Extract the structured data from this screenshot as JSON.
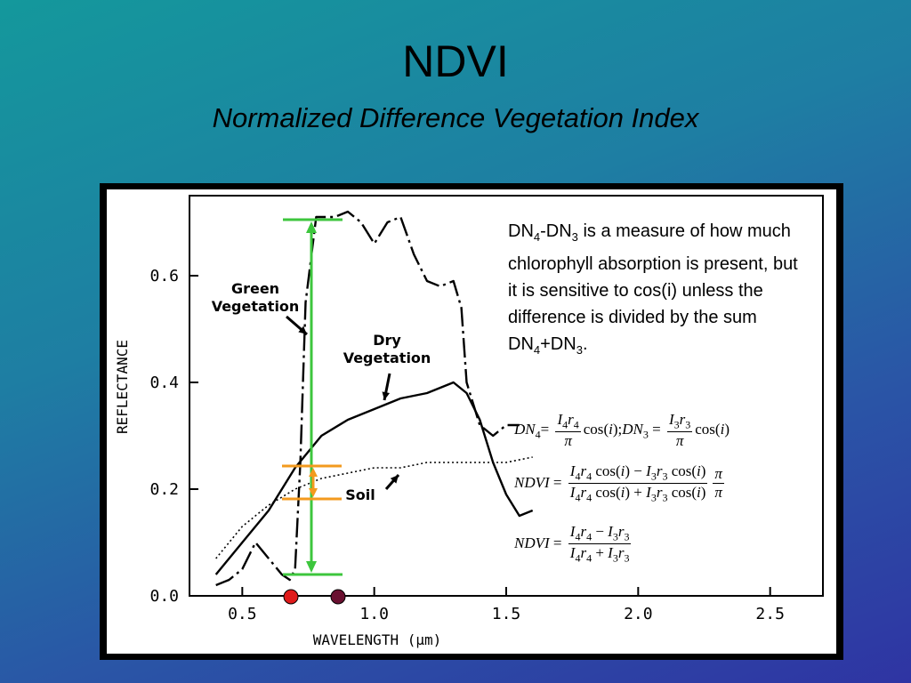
{
  "slide": {
    "title": "NDVI",
    "subtitle": "Normalized Difference Vegetation Index"
  },
  "description": {
    "p1": "DN",
    "s1": "4",
    "p2": "-DN",
    "s2": "3",
    "p3": " is a measure of how much chlorophyll absorption is present, but it is sensitive to cos(i) unless the difference is divided by the sum DN",
    "s3": "4",
    "p4": "+DN",
    "s4": "3",
    "p5": "."
  },
  "equations": {
    "eq1": {
      "dn": "DN",
      "sub4": "4",
      "eq": "=",
      "I": "I",
      "r": "r",
      "pi": "π",
      "cos": "cos",
      "i": "i",
      "sep": ");",
      "sub3": "3"
    },
    "eq2": {
      "lhs": "NDVI",
      "op_minus": "−",
      "op_plus": "+"
    },
    "eq3": {
      "lhs": "NDVI"
    }
  },
  "colors": {
    "green_marker": "#3dc63d",
    "orange_marker": "#f39a1e",
    "red_dot": "#e01b1b",
    "maroon_dot": "#6a1030"
  },
  "chart_data": {
    "type": "line",
    "xlabel": "WAVELENGTH (µm)",
    "ylabel": "REFLECTANCE",
    "xlim": [
      0.3,
      2.7
    ],
    "ylim": [
      0.0,
      0.75
    ],
    "xticks": [
      "0.5",
      "1.0",
      "1.5",
      "2.0",
      "2.5"
    ],
    "xtick_values": [
      0.5,
      1.0,
      1.5,
      2.0,
      2.5
    ],
    "yticks": [
      "0.0",
      "0.2",
      "0.4",
      "0.6"
    ],
    "ytick_values": [
      0.0,
      0.2,
      0.4,
      0.6
    ],
    "series": [
      {
        "name": "Green Vegetation",
        "style": "dash-dot",
        "points": [
          [
            0.4,
            0.02
          ],
          [
            0.45,
            0.03
          ],
          [
            0.5,
            0.05
          ],
          [
            0.55,
            0.1
          ],
          [
            0.6,
            0.07
          ],
          [
            0.65,
            0.04
          ],
          [
            0.68,
            0.03
          ],
          [
            0.7,
            0.05
          ],
          [
            0.72,
            0.25
          ],
          [
            0.74,
            0.55
          ],
          [
            0.78,
            0.71
          ],
          [
            0.85,
            0.71
          ],
          [
            0.9,
            0.72
          ],
          [
            0.95,
            0.7
          ],
          [
            1.0,
            0.66
          ],
          [
            1.05,
            0.7
          ],
          [
            1.1,
            0.71
          ],
          [
            1.15,
            0.64
          ],
          [
            1.2,
            0.59
          ],
          [
            1.25,
            0.58
          ],
          [
            1.3,
            0.59
          ],
          [
            1.33,
            0.54
          ],
          [
            1.35,
            0.4
          ],
          [
            1.4,
            0.32
          ],
          [
            1.45,
            0.3
          ],
          [
            1.5,
            0.32
          ],
          [
            1.55,
            0.32
          ]
        ]
      },
      {
        "name": "Dry Vegetation",
        "style": "solid",
        "points": [
          [
            0.4,
            0.04
          ],
          [
            0.5,
            0.1
          ],
          [
            0.6,
            0.16
          ],
          [
            0.7,
            0.24
          ],
          [
            0.8,
            0.3
          ],
          [
            0.9,
            0.33
          ],
          [
            1.0,
            0.35
          ],
          [
            1.1,
            0.37
          ],
          [
            1.2,
            0.38
          ],
          [
            1.3,
            0.4
          ],
          [
            1.35,
            0.38
          ],
          [
            1.4,
            0.33
          ],
          [
            1.45,
            0.25
          ],
          [
            1.5,
            0.19
          ],
          [
            1.55,
            0.15
          ],
          [
            1.6,
            0.16
          ]
        ]
      },
      {
        "name": "Soil",
        "style": "dotted",
        "points": [
          [
            0.4,
            0.07
          ],
          [
            0.5,
            0.13
          ],
          [
            0.6,
            0.17
          ],
          [
            0.7,
            0.2
          ],
          [
            0.8,
            0.22
          ],
          [
            0.9,
            0.23
          ],
          [
            1.0,
            0.24
          ],
          [
            1.1,
            0.24
          ],
          [
            1.2,
            0.25
          ],
          [
            1.3,
            0.25
          ],
          [
            1.4,
            0.25
          ],
          [
            1.5,
            0.25
          ],
          [
            1.6,
            0.26
          ]
        ]
      }
    ],
    "annotations": {
      "green_label": [
        "Green",
        "Vegetation"
      ],
      "dry_label": [
        "Dry",
        "Vegetation"
      ],
      "soil_label": "Soil"
    }
  }
}
